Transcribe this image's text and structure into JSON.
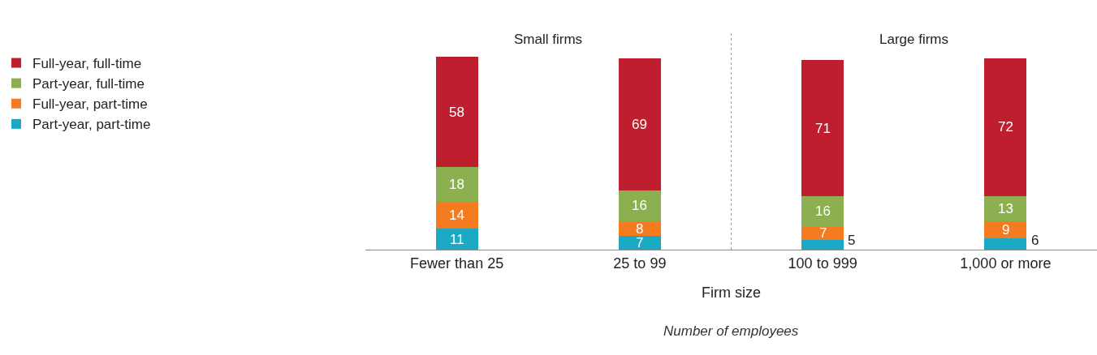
{
  "chart_data": {
    "type": "bar",
    "stacked": true,
    "data_labels": true,
    "xlabel": "Firm size",
    "legend": "top left",
    "categories": [
      "Fewer than 25",
      "25 to 99",
      "100 to 999",
      "1,000 or more"
    ],
    "series": [
      {
        "name": "Part-year, part-time",
        "color": "#1ba9c4",
        "values": [
          11,
          7,
          5,
          6
        ]
      },
      {
        "name": "Full-year, part-time",
        "color": "#f47b20",
        "values": [
          14,
          8,
          7,
          9
        ]
      },
      {
        "name": "Part-year, full-time",
        "color": "#8cb050",
        "values": [
          18,
          16,
          16,
          13
        ]
      },
      {
        "name": "Full-year, full-time",
        "color": "#be1e2d",
        "values": [
          58,
          69,
          71,
          72
        ]
      }
    ],
    "annotations": [
      "Small firms",
      "Large firms",
      "Number of employees"
    ]
  }
}
